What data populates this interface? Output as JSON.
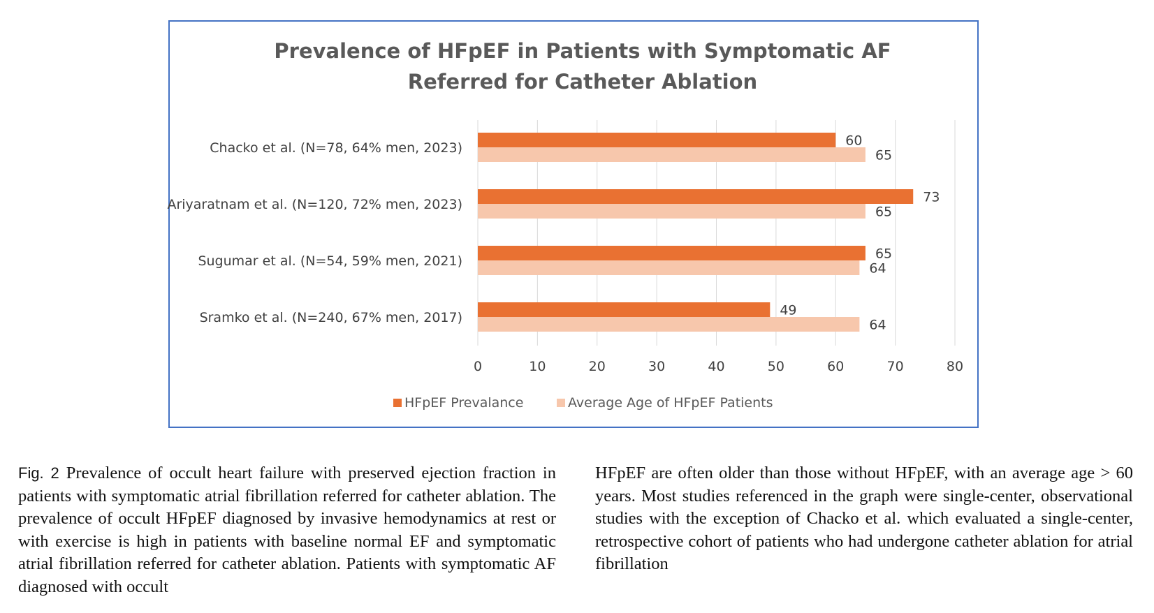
{
  "chart_data": {
    "type": "bar",
    "orientation": "horizontal",
    "title_lines": [
      "Prevalence of HFpEF in Patients with Symptomatic AF",
      "Referred for Catheter Ablation"
    ],
    "categories": [
      "Chacko et al. (N=78, 64% men, 2023)",
      "Ariyaratnam et al. (N=120, 72% men, 2023)",
      "Sugumar et al. (N=54, 59% men, 2021)",
      "Sramko et al. (N=240, 67% men, 2017)"
    ],
    "series": [
      {
        "name": "HFpEF Prevalance",
        "color": "#E97132",
        "values": [
          60,
          73,
          65,
          49
        ]
      },
      {
        "name": "Average Age of HFpEF Patients",
        "color": "#F7C7AC",
        "values": [
          65,
          65,
          64,
          64
        ]
      }
    ],
    "xlim": [
      0,
      80
    ],
    "xticks": [
      "0",
      "10",
      "20",
      "30",
      "40",
      "50",
      "60",
      "70",
      "80"
    ],
    "grid": true,
    "legend_position": "bottom",
    "frame_color": "#4472C4"
  },
  "caption": {
    "label": "Fig. 2",
    "left_text": "Prevalence of occult heart failure with preserved ejection fraction in patients with symptomatic atrial fibrillation referred for catheter ablation. The prevalence of occult HFpEF diagnosed by invasive hemodynamics at rest or with exercise is high in patients with baseline normal EF and symptomatic atrial fibrillation referred for catheter ablation. Patients with symptomatic AF diagnosed with occult",
    "right_text": "HFpEF are often older than those without HFpEF, with an average age > 60 years. Most studies referenced in the graph were single-center, observational studies with the exception of Chacko et al. which evaluated a single-center, retrospective cohort of patients who had undergone catheter ablation for atrial fibrillation"
  }
}
